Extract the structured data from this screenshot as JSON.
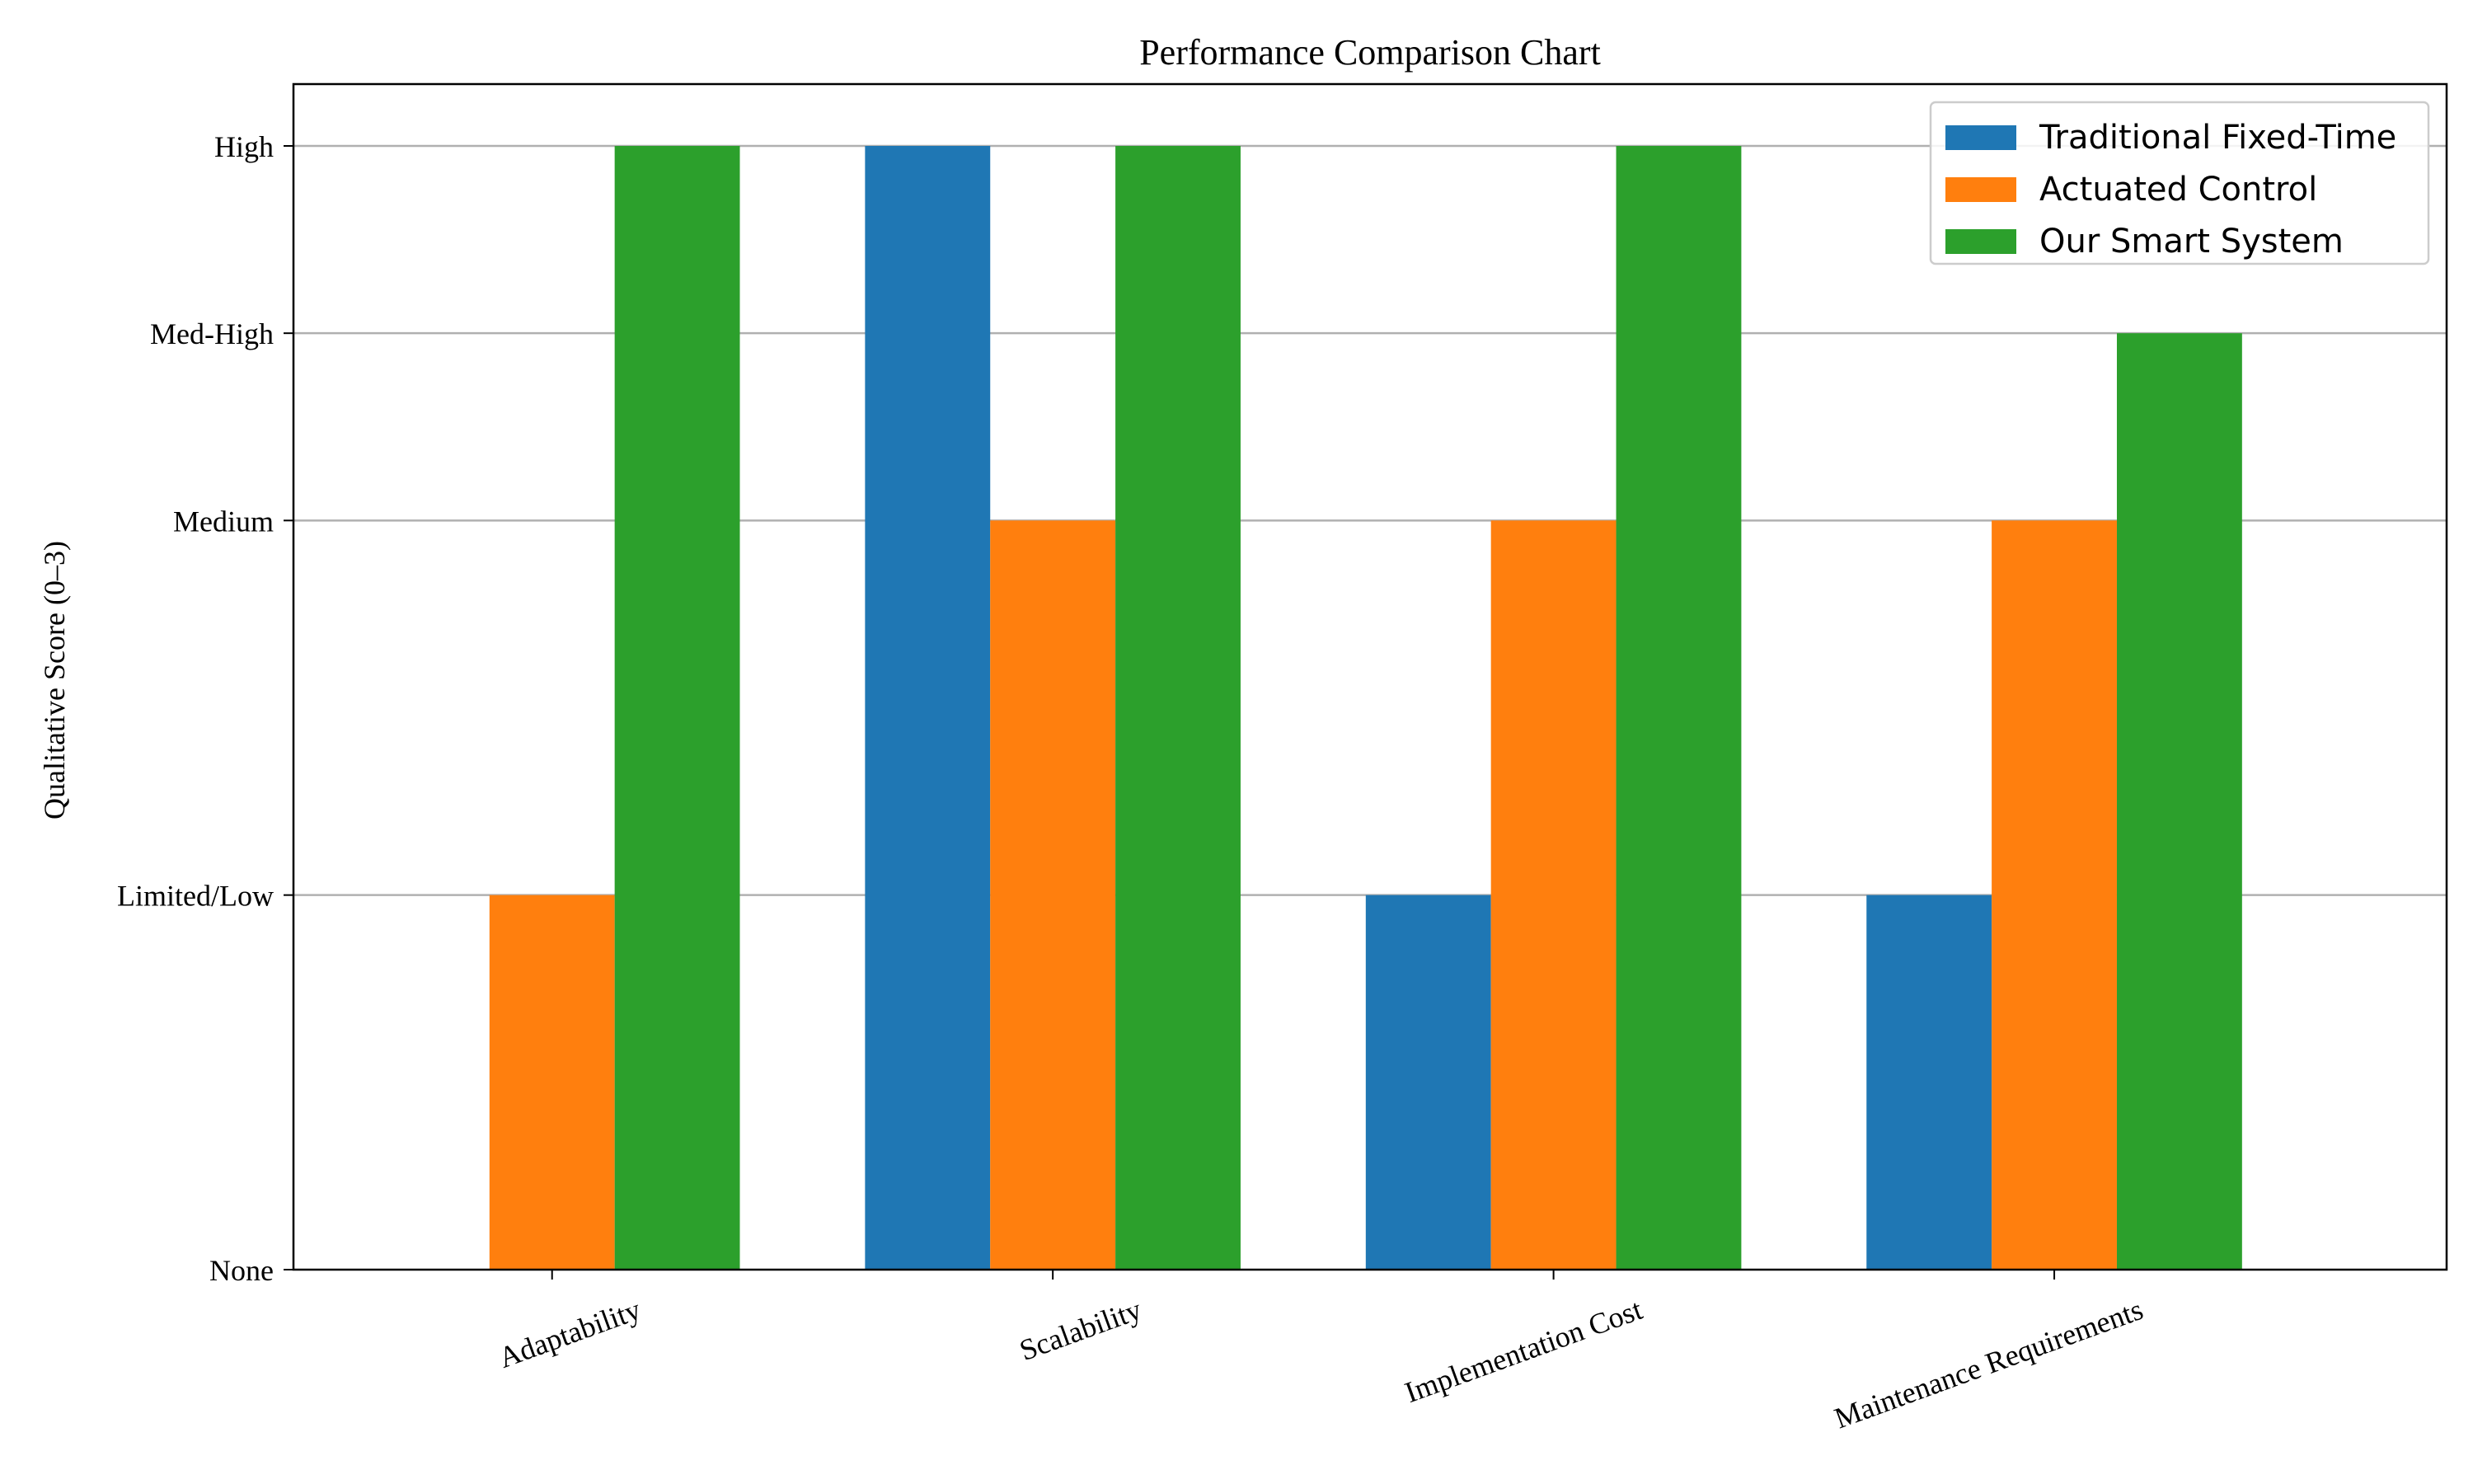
{
  "chart_data": {
    "type": "bar",
    "title": "Performance Comparison Chart",
    "xlabel": "",
    "ylabel": "Qualitative Score (0–3)",
    "categories": [
      "Adaptability",
      "Scalability",
      "Implementation Cost",
      "Maintenance Requirements"
    ],
    "ylim": [
      0,
      3
    ],
    "yticks": [
      {
        "value": 0,
        "label": "None"
      },
      {
        "value": 1,
        "label": "Limited/Low"
      },
      {
        "value": 2,
        "label": "Medium"
      },
      {
        "value": 2.5,
        "label": "Med-High"
      },
      {
        "value": 3,
        "label": "High"
      }
    ],
    "grid": "y",
    "legend": "top-right",
    "series": [
      {
        "name": "Traditional Fixed-Time",
        "color": "#1f77b4",
        "values": [
          0,
          3,
          1,
          1
        ]
      },
      {
        "name": "Actuated Control",
        "color": "#ff7f0e",
        "values": [
          1,
          2,
          2,
          2
        ]
      },
      {
        "name": "Our Smart System",
        "color": "#2ca02c",
        "values": [
          3,
          3,
          3,
          2.5
        ]
      }
    ]
  }
}
